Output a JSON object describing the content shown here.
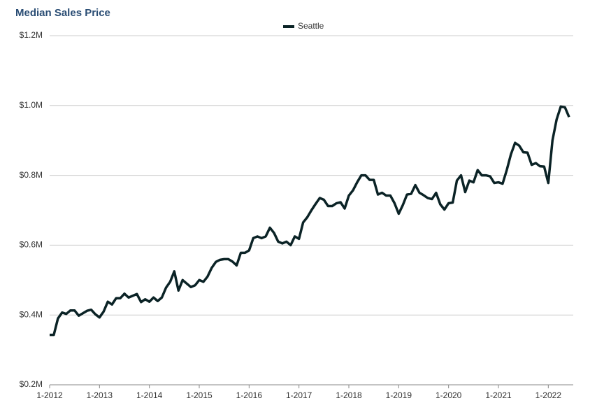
{
  "chart_data": {
    "type": "line",
    "title": "Median Sales Price",
    "categories": [
      "1-2012",
      null,
      null,
      null,
      null,
      null,
      null,
      null,
      null,
      null,
      null,
      null,
      "1-2013",
      null,
      null,
      null,
      null,
      null,
      null,
      null,
      null,
      null,
      null,
      null,
      "1-2014",
      null,
      null,
      null,
      null,
      null,
      null,
      null,
      null,
      null,
      null,
      null,
      "1-2015",
      null,
      null,
      null,
      null,
      null,
      null,
      null,
      null,
      null,
      null,
      null,
      "1-2016",
      null,
      null,
      null,
      null,
      null,
      null,
      null,
      null,
      null,
      null,
      null,
      "1-2017",
      null,
      null,
      null,
      null,
      null,
      null,
      null,
      null,
      null,
      null,
      null,
      "1-2018",
      null,
      null,
      null,
      null,
      null,
      null,
      null,
      null,
      null,
      null,
      null,
      "1-2019",
      null,
      null,
      null,
      null,
      null,
      null,
      null,
      null,
      null,
      null,
      null,
      "1-2020",
      null,
      null,
      null,
      null,
      null,
      null,
      null,
      null,
      null,
      null,
      null,
      "1-2021",
      null,
      null,
      null,
      null,
      null,
      null,
      null,
      null,
      null,
      null,
      null,
      "1-2022",
      null,
      null,
      null,
      null,
      null
    ],
    "series": [
      {
        "name": "Seattle",
        "color": "#0b2326",
        "values": [
          343000,
          343000,
          390000,
          407000,
          403000,
          413000,
          413000,
          398000,
          405000,
          412000,
          415000,
          402000,
          393000,
          410000,
          438000,
          430000,
          448000,
          448000,
          461000,
          450000,
          455000,
          460000,
          437000,
          445000,
          438000,
          450000,
          440000,
          450000,
          478000,
          495000,
          525000,
          470000,
          500000,
          490000,
          480000,
          485000,
          500000,
          495000,
          510000,
          535000,
          552000,
          558000,
          560000,
          560000,
          553000,
          542000,
          578000,
          578000,
          585000,
          620000,
          625000,
          620000,
          625000,
          650000,
          635000,
          610000,
          605000,
          610000,
          600000,
          625000,
          618000,
          665000,
          680000,
          700000,
          718000,
          735000,
          730000,
          712000,
          712000,
          720000,
          723000,
          705000,
          742000,
          757000,
          780000,
          800000,
          800000,
          787000,
          787000,
          745000,
          750000,
          742000,
          742000,
          720000,
          690000,
          715000,
          745000,
          747000,
          772000,
          750000,
          743000,
          735000,
          732000,
          750000,
          717000,
          702000,
          720000,
          722000,
          785000,
          800000,
          752000,
          785000,
          780000,
          815000,
          800000,
          800000,
          797000,
          778000,
          780000,
          776000,
          815000,
          860000,
          893000,
          885000,
          866000,
          865000,
          830000,
          835000,
          826000,
          825000,
          778000,
          900000,
          960000,
          997000,
          995000,
          967000
        ]
      }
    ],
    "ylim": [
      200000,
      1200000
    ],
    "yticks": [
      {
        "value": 200000,
        "label": "$0.2M"
      },
      {
        "value": 400000,
        "label": "$0.4M"
      },
      {
        "value": 600000,
        "label": "$0.6M"
      },
      {
        "value": 800000,
        "label": "$0.8M"
      },
      {
        "value": 1000000,
        "label": "$1.0M"
      },
      {
        "value": 1200000,
        "label": "$1.2M"
      }
    ],
    "grid": true,
    "legend": "top"
  }
}
